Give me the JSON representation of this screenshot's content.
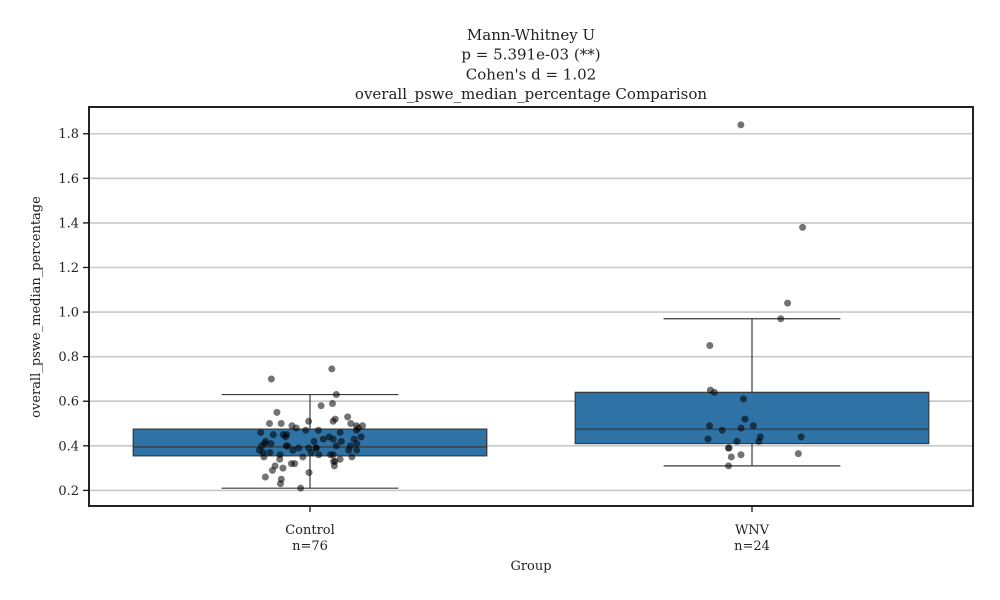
{
  "chart_data": {
    "type": "box",
    "title_lines": [
      "Mann-Whitney U",
      "p = 5.391e-03 (**)",
      "Cohen's d = 1.02",
      "overall_pswe_median_percentage Comparison"
    ],
    "xlabel": "Group",
    "ylabel": "overall_pswe_median_percentage",
    "ylim": [
      0.13,
      1.92
    ],
    "yticks": [
      0.2,
      0.4,
      0.6,
      0.8,
      1.0,
      1.2,
      1.4,
      1.6,
      1.8
    ],
    "ytick_labels": [
      "0.2",
      "0.4",
      "0.6",
      "0.8",
      "1.0",
      "1.2",
      "1.4",
      "1.6",
      "1.8"
    ],
    "grid": true,
    "box_color": "#2e72a6",
    "groups": [
      {
        "name": "Control",
        "n_label": "n=76",
        "q1": 0.355,
        "median": 0.395,
        "q3": 0.475,
        "whisker_low": 0.21,
        "whisker_high": 0.63,
        "points": [
          0.21,
          0.23,
          0.25,
          0.26,
          0.28,
          0.29,
          0.3,
          0.31,
          0.31,
          0.32,
          0.32,
          0.33,
          0.33,
          0.34,
          0.34,
          0.35,
          0.35,
          0.35,
          0.36,
          0.36,
          0.36,
          0.37,
          0.37,
          0.37,
          0.38,
          0.38,
          0.38,
          0.38,
          0.39,
          0.39,
          0.39,
          0.39,
          0.4,
          0.4,
          0.4,
          0.4,
          0.41,
          0.41,
          0.41,
          0.42,
          0.42,
          0.42,
          0.43,
          0.43,
          0.43,
          0.44,
          0.44,
          0.44,
          0.45,
          0.45,
          0.45,
          0.46,
          0.46,
          0.47,
          0.47,
          0.47,
          0.48,
          0.48,
          0.49,
          0.49,
          0.49,
          0.5,
          0.5,
          0.5,
          0.51,
          0.51,
          0.52,
          0.53,
          0.55,
          0.58,
          0.59,
          0.63,
          0.7,
          0.745,
          0.36,
          0.4
        ]
      },
      {
        "name": "WNV",
        "n_label": "n=24",
        "q1": 0.41,
        "median": 0.475,
        "q3": 0.64,
        "whisker_low": 0.31,
        "whisker_high": 0.97,
        "points": [
          0.31,
          0.35,
          0.36,
          0.365,
          0.39,
          0.39,
          0.42,
          0.42,
          0.43,
          0.44,
          0.44,
          0.47,
          0.48,
          0.49,
          0.49,
          0.52,
          0.61,
          0.64,
          0.65,
          0.85,
          0.97,
          1.04,
          1.38,
          1.84
        ]
      }
    ]
  }
}
